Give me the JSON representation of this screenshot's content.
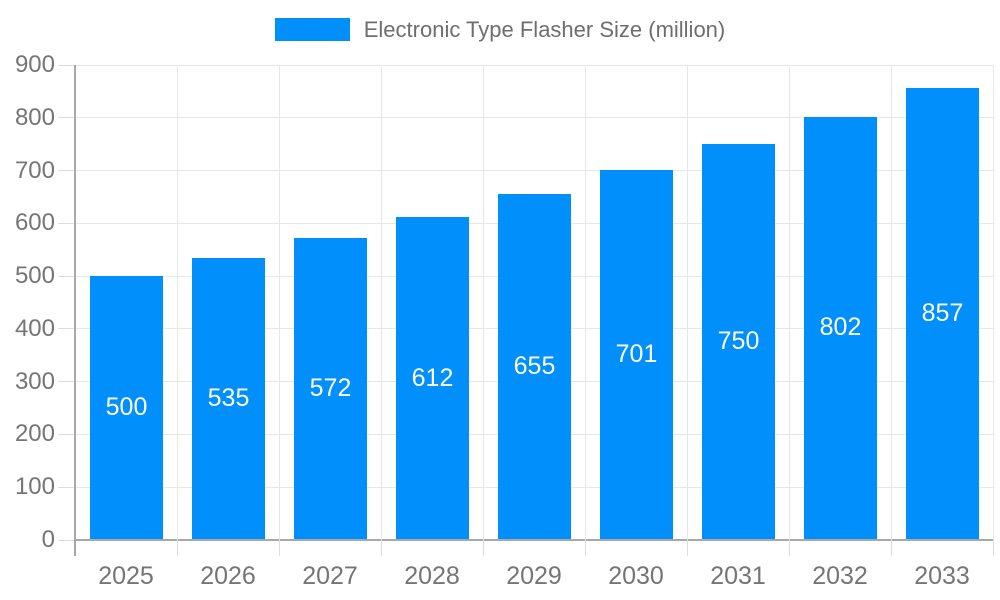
{
  "legend": {
    "label": "Electronic Type Flasher Size (million)"
  },
  "chart_data": {
    "type": "bar",
    "title": "Electronic Type Flasher Size (million)",
    "series_name": "Electronic Type Flasher Size (million)",
    "categories": [
      "2025",
      "2026",
      "2027",
      "2028",
      "2029",
      "2030",
      "2031",
      "2032",
      "2033"
    ],
    "values": [
      500,
      535,
      572,
      612,
      655,
      701,
      750,
      802,
      857
    ],
    "bar_labels": [
      "500",
      "535",
      "572",
      "612",
      "655",
      "701",
      "750",
      "802",
      "857"
    ],
    "xlabel": "",
    "ylabel": "",
    "ylim": [
      0,
      900
    ],
    "ytick_step": 100,
    "yticks": [
      0,
      100,
      200,
      300,
      400,
      500,
      600,
      700,
      800,
      900
    ],
    "grid": true,
    "legend_position": "top",
    "bar_labels_visible": true,
    "colors": {
      "bar": "#008FFB",
      "bar_label_text": "#FFFFFF",
      "grid_line": "#E7E7E7",
      "axis_line": "#A8A8A8",
      "minor_tick": "#DCDCDC",
      "tick_label_text": "#757575",
      "legend_text": "#6E6E6E",
      "background": "#FFFFFF"
    }
  }
}
